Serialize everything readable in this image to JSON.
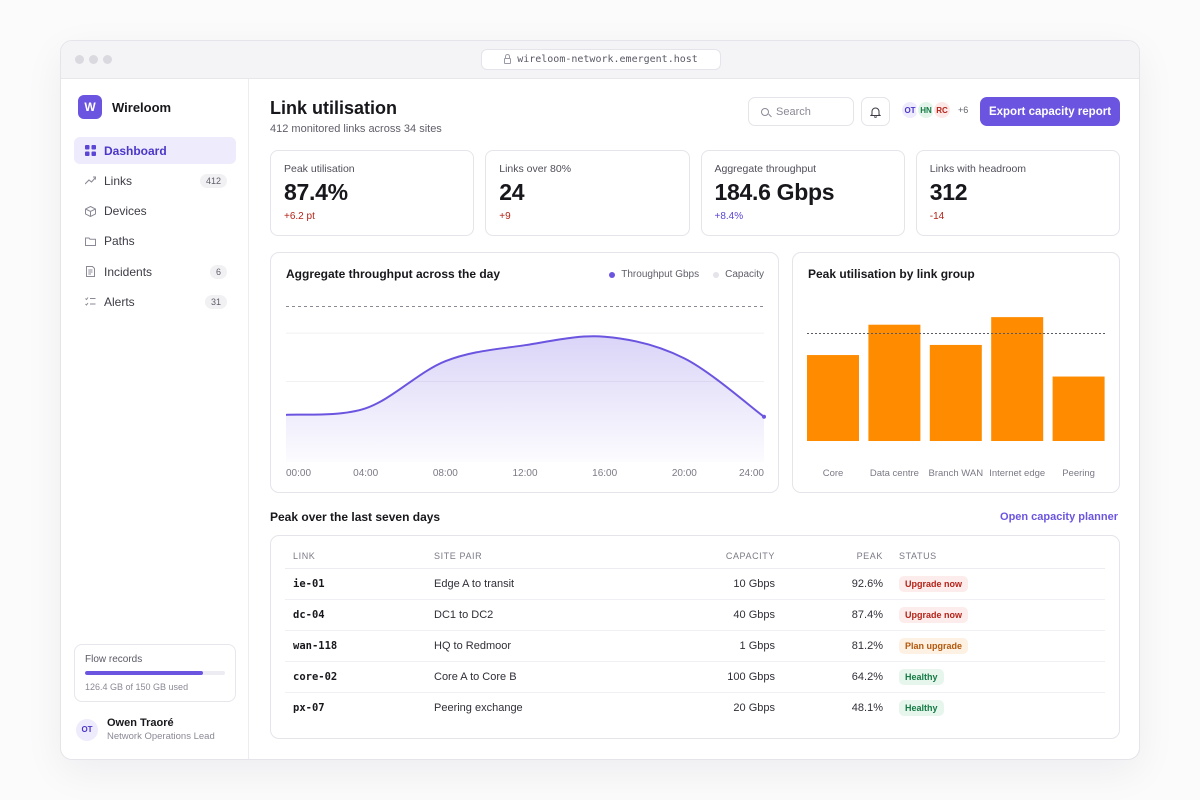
{
  "browser": {
    "url": "wireloom-network.emergent.host"
  },
  "sidebar": {
    "brand_initial": "W",
    "brand_name": "Wireloom",
    "items": [
      {
        "label": "Dashboard",
        "icon": "grid-icon",
        "badge": "",
        "active": true
      },
      {
        "label": "Links",
        "icon": "trend-icon",
        "badge": "412"
      },
      {
        "label": "Devices",
        "icon": "cube-icon",
        "badge": ""
      },
      {
        "label": "Paths",
        "icon": "folder-icon",
        "badge": ""
      },
      {
        "label": "Incidents",
        "icon": "document-icon",
        "badge": "6"
      },
      {
        "label": "Alerts",
        "icon": "list-check-icon",
        "badge": "31"
      }
    ],
    "storage": {
      "label": "Flow records",
      "usage": "126.4 GB of 150 GB used",
      "fraction": 0.843
    },
    "user": {
      "initials": "OT",
      "name": "Owen Traoré",
      "role": "Network Operations Lead"
    }
  },
  "header": {
    "title": "Link utilisation",
    "subtitle": "412 monitored links across 34 sites",
    "search_placeholder": "Search",
    "avatars": [
      {
        "initials": "OT",
        "bg": "#eeebfc",
        "fg": "#4a36c9"
      },
      {
        "initials": "HN",
        "bg": "#e3f5ea",
        "fg": "#157a45"
      },
      {
        "initials": "RC",
        "bg": "#fde8e8",
        "fg": "#b42318"
      }
    ],
    "avatars_more": "+6",
    "export_label": "Export capacity report"
  },
  "kpis": [
    {
      "label": "Peak utilisation",
      "value": "87.4%",
      "delta": "+6.2 pt",
      "delta_color": "#b42318"
    },
    {
      "label": "Links over 80%",
      "value": "24",
      "delta": "+9",
      "delta_color": "#b42318"
    },
    {
      "label": "Aggregate throughput",
      "value": "184.6 Gbps",
      "delta": "+8.4%",
      "delta_color": "#5a45d6"
    },
    {
      "label": "Links with headroom",
      "value": "312",
      "delta": "-14",
      "delta_color": "#b42318"
    }
  ],
  "throughput_card": {
    "title": "Aggregate throughput across the day",
    "legend": [
      {
        "name": "Throughput Gbps",
        "color": "#6b55e0"
      },
      {
        "name": "Capacity",
        "color": "#e4e4ea"
      }
    ]
  },
  "utilisation_card": {
    "title": "Peak utilisation by link group"
  },
  "chart_data": [
    {
      "type": "area",
      "x": [
        "00:00",
        "04:00",
        "08:00",
        "12:00",
        "16:00",
        "20:00",
        "24:00"
      ],
      "series": [
        {
          "name": "Throughput Gbps",
          "values": [
            50,
            57,
            107,
            124,
            133,
            110,
            48
          ],
          "color": "#6b55e0"
        }
      ],
      "capacity_reference": 165,
      "ylim": [
        0,
        190
      ],
      "grid": true,
      "legend": "top-right"
    },
    {
      "type": "bar",
      "categories": [
        "Core",
        "Data centre",
        "Branch WAN",
        "Internet edge",
        "Peering"
      ],
      "values": [
        68,
        92,
        76,
        98,
        51
      ],
      "threshold": 85,
      "ylim": [
        0,
        125
      ],
      "color": "#ff8c00"
    }
  ],
  "table": {
    "section_title": "Peak over the last seven days",
    "planner_link": "Open capacity planner",
    "columns": [
      "LINK",
      "SITE PAIR",
      "CAPACITY",
      "PEAK",
      "STATUS"
    ],
    "rows": [
      {
        "link": "ie-01",
        "site_pair": "Edge A to transit",
        "capacity": "10 Gbps",
        "peak": "92.6%",
        "status": "Upgrade now",
        "status_bg": "#fdecec",
        "status_fg": "#b42318"
      },
      {
        "link": "dc-04",
        "site_pair": "DC1 to DC2",
        "capacity": "40 Gbps",
        "peak": "87.4%",
        "status": "Upgrade now",
        "status_bg": "#fdecec",
        "status_fg": "#b42318"
      },
      {
        "link": "wan-118",
        "site_pair": "HQ to Redmoor",
        "capacity": "1 Gbps",
        "peak": "81.2%",
        "status": "Plan upgrade",
        "status_bg": "#fdf1e3",
        "status_fg": "#b4570a"
      },
      {
        "link": "core-02",
        "site_pair": "Core A to Core B",
        "capacity": "100 Gbps",
        "peak": "64.2%",
        "status": "Healthy",
        "status_bg": "#e6f6ec",
        "status_fg": "#157a45"
      },
      {
        "link": "px-07",
        "site_pair": "Peering exchange",
        "capacity": "20 Gbps",
        "peak": "48.1%",
        "status": "Healthy",
        "status_bg": "#e6f6ec",
        "status_fg": "#157a45"
      }
    ]
  }
}
